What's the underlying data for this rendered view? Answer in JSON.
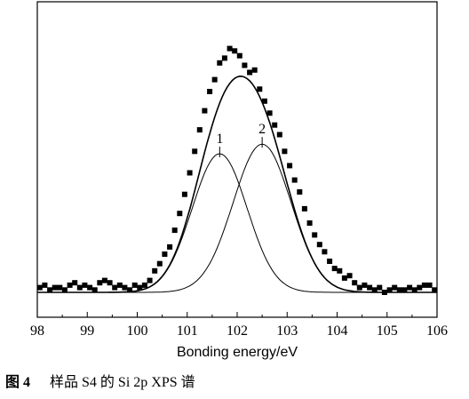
{
  "caption": {
    "figure_number": "图 4",
    "text": "样品 S4 的 Si 2p XPS 谱"
  },
  "chart_data": {
    "type": "scatter",
    "xlabel": "Bonding energy/eV",
    "ylabel": "",
    "xlim": [
      98,
      106
    ],
    "x_ticks": [
      "98",
      "99",
      "100",
      "101",
      "102",
      "103",
      "104",
      "105",
      "106"
    ],
    "y_ticks_labeled": false,
    "grid": false,
    "series": [
      {
        "kind": "markers",
        "marker": "square",
        "color": "#000000",
        "x": [
          98.05,
          98.15,
          98.25,
          98.35,
          98.45,
          98.55,
          98.65,
          98.75,
          98.85,
          98.95,
          99.05,
          99.15,
          99.25,
          99.35,
          99.45,
          99.55,
          99.65,
          99.75,
          99.85,
          99.95,
          100.05,
          100.15,
          100.25,
          100.35,
          100.45,
          100.55,
          100.65,
          100.75,
          100.85,
          100.95,
          101.05,
          101.15,
          101.25,
          101.35,
          101.45,
          101.55,
          101.65,
          101.75,
          101.85,
          101.95,
          102.05,
          102.15,
          102.25,
          102.35,
          102.45,
          102.55,
          102.65,
          102.75,
          102.85,
          102.95,
          103.05,
          103.15,
          103.25,
          103.35,
          103.45,
          103.55,
          103.65,
          103.75,
          103.85,
          103.95,
          104.05,
          104.15,
          104.25,
          104.35,
          104.45,
          104.55,
          104.65,
          104.75,
          104.85,
          104.95,
          105.05,
          105.15,
          105.25,
          105.35,
          105.45,
          105.55,
          105.65,
          105.75,
          105.85,
          105.95
        ],
        "y": [
          0.02,
          0.03,
          0.01,
          0.02,
          0.02,
          0.01,
          0.03,
          0.04,
          0.02,
          0.03,
          0.02,
          0.01,
          0.04,
          0.05,
          0.04,
          0.02,
          0.03,
          0.02,
          0.01,
          0.03,
          0.02,
          0.03,
          0.05,
          0.09,
          0.12,
          0.16,
          0.19,
          0.26,
          0.33,
          0.41,
          0.5,
          0.59,
          0.68,
          0.76,
          0.84,
          0.89,
          0.96,
          0.98,
          1.02,
          1.01,
          0.99,
          0.95,
          0.92,
          0.93,
          0.85,
          0.8,
          0.75,
          0.7,
          0.66,
          0.59,
          0.53,
          0.47,
          0.42,
          0.35,
          0.29,
          0.24,
          0.2,
          0.17,
          0.13,
          0.1,
          0.09,
          0.06,
          0.07,
          0.04,
          0.02,
          0.03,
          0.02,
          0.01,
          0.02,
          0.0,
          0.01,
          0.02,
          0.01,
          0.01,
          0.02,
          0.01,
          0.02,
          0.03,
          0.03,
          0.01
        ]
      },
      {
        "kind": "envelope",
        "name": "",
        "line": true
      },
      {
        "kind": "component",
        "name": "1",
        "center": 101.65,
        "height": 0.58,
        "sigma": 0.55
      },
      {
        "kind": "component",
        "name": "2",
        "center": 102.5,
        "height": 0.62,
        "sigma": 0.58
      }
    ],
    "peak_labels": [
      {
        "text": "1",
        "x": 101.65
      },
      {
        "text": "2",
        "x": 102.5
      }
    ]
  }
}
